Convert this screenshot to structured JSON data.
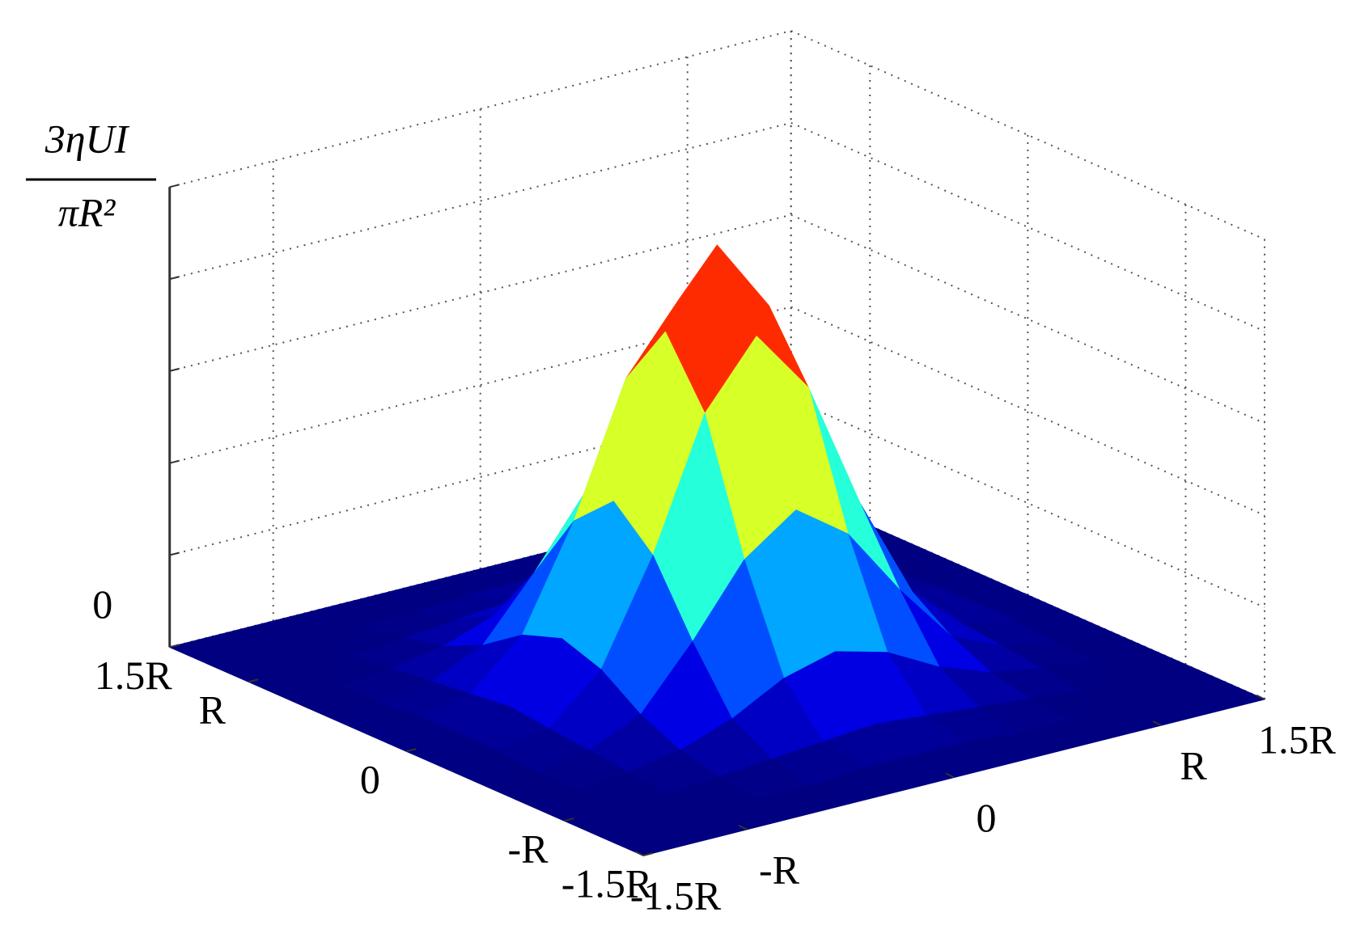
{
  "chart_data": {
    "type": "surface",
    "zlabel": {
      "numerator": "3ηUI",
      "denominator": "πR²"
    },
    "x": [
      -1.5,
      -1.25,
      -1,
      -0.75,
      -0.5,
      -0.25,
      0,
      0.25,
      0.5,
      0.75,
      1,
      1.25,
      1.5
    ],
    "y": [
      -1.5,
      -1.25,
      -1,
      -0.75,
      -0.5,
      -0.25,
      0,
      0.25,
      0.5,
      0.75,
      1,
      1.25,
      1.5
    ],
    "z": [
      [
        0,
        0,
        0,
        0,
        0,
        0,
        0,
        0,
        0,
        0,
        0,
        0,
        0
      ],
      [
        0,
        0,
        0,
        0,
        0,
        0.01,
        0.01,
        0.01,
        0,
        0,
        0,
        0,
        0
      ],
      [
        0,
        0,
        0,
        0.01,
        0.02,
        0.03,
        0.04,
        0.03,
        0.02,
        0.01,
        0,
        0,
        0
      ],
      [
        0,
        0,
        0.01,
        0.03,
        0.07,
        0.13,
        0.16,
        0.13,
        0.07,
        0.03,
        0.01,
        0,
        0
      ],
      [
        0,
        0,
        0.02,
        0.07,
        0.2,
        0.35,
        0.43,
        0.35,
        0.2,
        0.07,
        0.02,
        0,
        0
      ],
      [
        0,
        0.01,
        0.03,
        0.13,
        0.35,
        0.63,
        0.77,
        0.63,
        0.35,
        0.13,
        0.03,
        0.01,
        0
      ],
      [
        0,
        0.01,
        0.04,
        0.16,
        0.43,
        0.77,
        0.93,
        0.77,
        0.43,
        0.16,
        0.04,
        0.01,
        0
      ],
      [
        0,
        0.01,
        0.03,
        0.13,
        0.35,
        0.63,
        0.77,
        0.63,
        0.35,
        0.13,
        0.03,
        0.01,
        0
      ],
      [
        0,
        0,
        0.02,
        0.07,
        0.2,
        0.35,
        0.43,
        0.35,
        0.2,
        0.07,
        0.02,
        0,
        0
      ],
      [
        0,
        0,
        0.01,
        0.03,
        0.07,
        0.13,
        0.16,
        0.13,
        0.07,
        0.03,
        0.01,
        0,
        0
      ],
      [
        0,
        0,
        0,
        0.01,
        0.02,
        0.03,
        0.04,
        0.03,
        0.02,
        0.01,
        0,
        0,
        0
      ],
      [
        0,
        0,
        0,
        0,
        0,
        0.01,
        0.01,
        0.01,
        0,
        0,
        0,
        0,
        0
      ],
      [
        0,
        0,
        0,
        0,
        0,
        0,
        0,
        0,
        0,
        0,
        0,
        0,
        0
      ]
    ],
    "xlim": [
      -1.5,
      1.5
    ],
    "ylim": [
      -1.5,
      1.5
    ],
    "zlim": [
      0,
      1
    ],
    "xticks": [
      {
        "value": -1.5,
        "label": "-1.5R"
      },
      {
        "value": -1,
        "label": "-R"
      },
      0,
      {
        "value": 1,
        "label": "R"
      },
      {
        "value": 1.5,
        "label": "1.5R"
      }
    ],
    "yticks": [
      {
        "value": -1.5,
        "label": "-1.5R"
      },
      {
        "value": -1,
        "label": "-R"
      },
      0,
      {
        "value": 1,
        "label": "R"
      },
      {
        "value": 1.5,
        "label": "1.5R"
      }
    ],
    "zticks": [
      0,
      {
        "value": 0.2,
        "label": null
      },
      {
        "value": 0.4,
        "label": null
      },
      {
        "value": 0.6,
        "label": null
      },
      {
        "value": 0.8,
        "label": null
      },
      {
        "value": 1,
        "label": null
      }
    ],
    "grid": true,
    "colormap": "jet"
  }
}
